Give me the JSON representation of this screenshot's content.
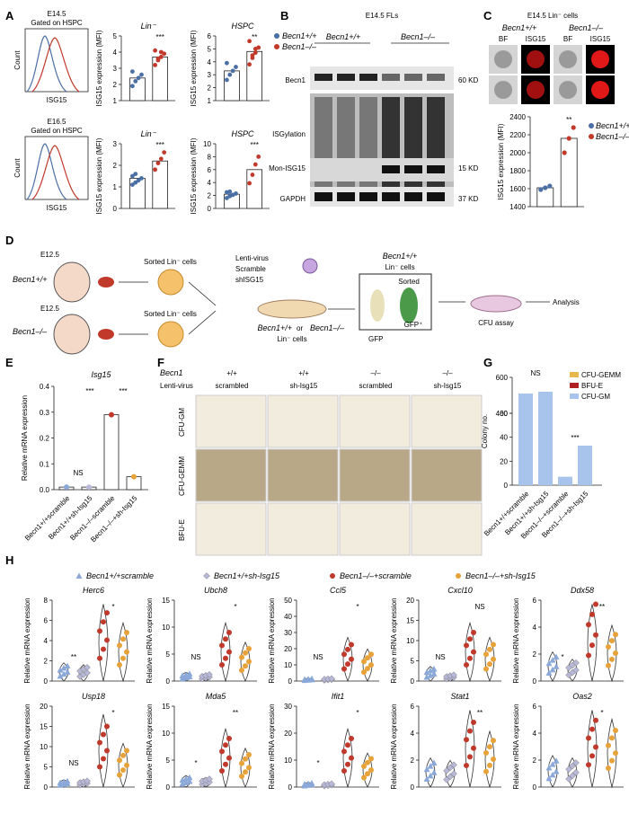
{
  "panel_labels": {
    "A": "A",
    "B": "B",
    "C": "C",
    "D": "D",
    "E": "E",
    "F": "F",
    "G": "G",
    "H": "H"
  },
  "genotype": {
    "wt": "Becn1+/+",
    "ko": "Becn1–/–",
    "wt_s": "+/+",
    "ko_s": "–/–"
  },
  "A": {
    "e145": "E14.5",
    "e165": "E16.5",
    "gated": "Gated on HSPC",
    "count": "Count",
    "isg15": "ISG15",
    "lin": "Lin⁻",
    "hspc": "HSPC",
    "ylabel": "ISG15 expression (MFI)",
    "charts": [
      {
        "title": "Lin⁻",
        "ticks": [
          "1",
          "2",
          "3",
          "4",
          "5"
        ],
        "sig": "***",
        "wt": {
          "mean": 2.4,
          "pts": [
            1.9,
            2.2,
            2.4,
            2.6,
            2.8
          ]
        },
        "ko": {
          "mean": 3.7,
          "pts": [
            3.2,
            3.5,
            3.7,
            3.9,
            4.1,
            3.6,
            4.0
          ]
        }
      },
      {
        "title": "HSPC",
        "ticks": [
          "1",
          "2",
          "3",
          "4",
          "5",
          "6"
        ],
        "sig": "**",
        "wt": {
          "mean": 3.3,
          "pts": [
            2.6,
            3.0,
            3.3,
            3.6,
            3.9
          ]
        },
        "ko": {
          "mean": 4.8,
          "pts": [
            3.8,
            4.3,
            4.7,
            5.1,
            5.6,
            4.5,
            5.0
          ]
        }
      },
      {
        "title": "Lin⁻",
        "ticks": [
          "0",
          "1",
          "2",
          "3"
        ],
        "sig": "***",
        "wt": {
          "mean": 1.4,
          "pts": [
            1.1,
            1.2,
            1.3,
            1.4,
            1.5,
            1.6
          ]
        },
        "ko": {
          "mean": 2.2,
          "pts": [
            1.8,
            2.1,
            2.3,
            2.6
          ]
        }
      },
      {
        "title": "HSPC",
        "ticks": [
          "0",
          "2",
          "4",
          "6",
          "8",
          "10"
        ],
        "sig": "***",
        "wt": {
          "mean": 2.2,
          "pts": [
            1.6,
            1.9,
            2.1,
            2.3,
            2.5,
            2.6
          ]
        },
        "ko": {
          "mean": 6.0,
          "pts": [
            3.9,
            5.2,
            6.8,
            8.0
          ]
        }
      }
    ]
  },
  "B": {
    "title": "E14.5 FLs",
    "becn1": "Becn1",
    "isgylation": "ISGylation",
    "mon": "Mon-ISG15",
    "gapdh": "GAPDH",
    "kd60": "60 KD",
    "kd15": "15 KD",
    "kd37": "37 KD"
  },
  "C": {
    "title": "E14.5 Lin⁻ cells",
    "bf": "BF",
    "isg15": "ISG15",
    "ylabel": "ISG15 expression (MFI)",
    "ticks": [
      "1400",
      "1600",
      "1800",
      "2000",
      "2200",
      "2400"
    ],
    "sig": "**",
    "wt": {
      "mean": 1610,
      "pts": [
        1590,
        1610,
        1630
      ]
    },
    "ko": {
      "mean": 2160,
      "pts": [
        2000,
        2160,
        2280
      ]
    }
  },
  "D": {
    "e125": "E12.5",
    "sorted": "Sorted Lin⁻ cells",
    "lenti": "Lenti-virus",
    "scramble": "Scramble",
    "shisg": "shISG15",
    "lincells": "Lin⁻ cells",
    "or": "or",
    "sortedbox": "Sorted",
    "gfp": "GFP",
    "gfpplus": "GFP⁺",
    "cfu": "CFU assay",
    "analysis": "Analysis"
  },
  "E": {
    "title": "Isg15",
    "ylabel": "Relative mRNA expression",
    "ticks": [
      "0.0",
      "0.1",
      "0.2",
      "0.3",
      "0.4"
    ],
    "ns": "NS",
    "sig1": "***",
    "sig2": "***",
    "groups": [
      "Becn1+/+scramble",
      "Becn1+/+sh-Isg15",
      "Becn1–/–scramble",
      "Becn1–/–+sh-Isg15"
    ],
    "means": [
      0.01,
      0.01,
      0.29,
      0.05
    ]
  },
  "F": {
    "becn1": "Becn1",
    "lenti": "Lenti-virus",
    "geno": [
      "+/+",
      "+/+",
      "–/–",
      "–/–"
    ],
    "treat": [
      "scrambled",
      "sh-Isg15",
      "scrambled",
      "sh-Isg15"
    ],
    "rows": [
      "CFU-GM",
      "CFU-GEMM",
      "BFU-E"
    ]
  },
  "G": {
    "ylabel": "Colony no.",
    "ticks": [
      "0",
      "20",
      "40",
      "60",
      "400",
      "600"
    ],
    "ns": "NS",
    "sig": "***",
    "legend": [
      "CFU-GEMM",
      "BFU-E",
      "CFU-GM"
    ],
    "groups": [
      "Becn1+/+scramble",
      "Becn1+/+sh-Isg15",
      "Becn1–/–+scramble",
      "Becn1–/–+sh-Isg15"
    ],
    "totals": [
      510,
      520,
      7,
      33
    ]
  },
  "H": {
    "legend": [
      "Becn1+/+scramble",
      "Becn1+/+sh-Isg15",
      "Becn1–/–+scramble",
      "Becn1–/–+sh-Isg15"
    ],
    "ylabel": "Relative mRNA expression",
    "genes": [
      {
        "name": "Herc6",
        "ticks": [
          "0",
          "2",
          "4",
          "6",
          "8"
        ],
        "max": 8,
        "s1": "**",
        "s2": "*",
        "m": [
          1.0,
          0.9,
          4.5,
          3.2
        ]
      },
      {
        "name": "Ubch8",
        "ticks": [
          "0",
          "5",
          "10",
          "15"
        ],
        "max": 15,
        "s1": "NS",
        "s2": "*",
        "m": [
          0.9,
          0.8,
          6.0,
          4.0
        ]
      },
      {
        "name": "Ccl5",
        "ticks": [
          "0",
          "10",
          "20",
          "30",
          "40",
          "50"
        ],
        "max": 50,
        "s1": "NS",
        "s2": "*",
        "m": [
          1.0,
          1.0,
          15,
          11
        ]
      },
      {
        "name": "Cxcl10",
        "ticks": [
          "0",
          "5",
          "10",
          "15",
          "20"
        ],
        "max": 20,
        "s1": "NS",
        "s2": "NS",
        "m": [
          2.0,
          1.0,
          8.0,
          6.0
        ]
      },
      {
        "name": "Ddx58",
        "ticks": [
          "0",
          "2",
          "4",
          "6"
        ],
        "max": 6,
        "s1": "*",
        "s2": "**",
        "m": [
          1.2,
          0.9,
          3.8,
          2.3
        ]
      },
      {
        "name": "Usp18",
        "ticks": [
          "0",
          "5",
          "10",
          "15",
          "20"
        ],
        "max": 20,
        "s1": "NS",
        "s2": "*",
        "m": [
          1.0,
          1.0,
          10,
          6.0
        ]
      },
      {
        "name": "Mda5",
        "ticks": [
          "0",
          "5",
          "10",
          "15"
        ],
        "max": 15,
        "s1": "*",
        "s2": "**",
        "m": [
          1.2,
          1.0,
          6.0,
          4.0
        ]
      },
      {
        "name": "Ifit1",
        "ticks": [
          "0",
          "10",
          "20",
          "30"
        ],
        "max": 30,
        "s1": "*",
        "s2": "*",
        "m": [
          1.0,
          0.8,
          12,
          7.0
        ]
      },
      {
        "name": "Stat1",
        "ticks": [
          "0",
          "2",
          "4",
          "6"
        ],
        "max": 6,
        "s1": "",
        "s2": "**",
        "m": [
          1.2,
          1.1,
          3.2,
          2.3
        ]
      },
      {
        "name": "Oas2",
        "ticks": [
          "0",
          "2",
          "4",
          "6"
        ],
        "max": 6,
        "s1": "",
        "s2": "*",
        "m": [
          1.3,
          1.2,
          3.3,
          2.8
        ]
      }
    ]
  },
  "colors": {
    "wt": "#4a6fa5",
    "ko": "#c0392b",
    "blue": "#8aa8d8",
    "orange": "#e8a23a",
    "gray": "#b8b8d8",
    "yellow": "#e8b84a",
    "red": "#b02020",
    "lightblue": "#a8c4ec"
  }
}
